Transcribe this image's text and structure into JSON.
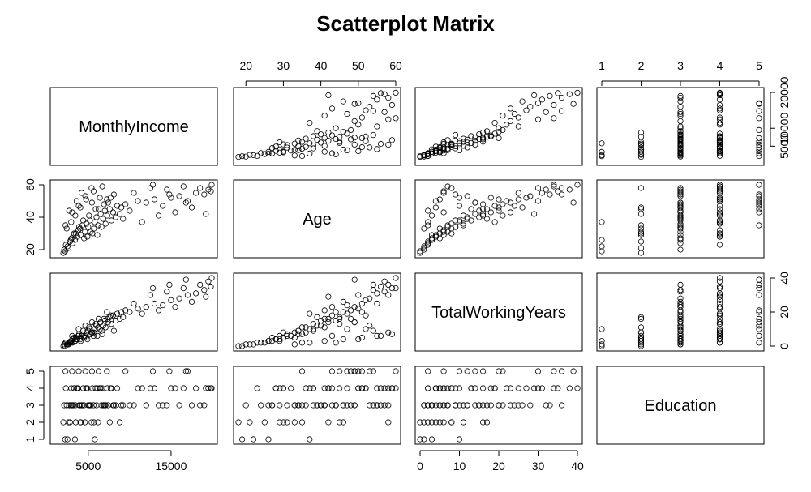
{
  "chart_data": {
    "type": "scatter",
    "subtype": "scatterplot-matrix",
    "title": "Scatterplot Matrix",
    "variables": [
      {
        "name": "MonthlyIncome",
        "range": [
          1009,
          19999
        ]
      },
      {
        "name": "Age",
        "range": [
          18,
          60
        ]
      },
      {
        "name": "TotalWorkingYears",
        "range": [
          0,
          40
        ]
      },
      {
        "name": "Education",
        "range": [
          1,
          5
        ]
      }
    ],
    "ticks": {
      "MonthlyIncome": {
        "bottom": [
          "5000",
          "15000"
        ],
        "right": [
          "5000",
          "10000",
          "20000"
        ]
      },
      "Age": {
        "top": [
          "20",
          "30",
          "40",
          "50",
          "60"
        ],
        "left": [
          "20",
          "40",
          "60"
        ]
      },
      "TotalWorkingYears": {
        "bottom": [
          "0",
          "10",
          "20",
          "30",
          "40"
        ],
        "right": [
          "0",
          "20",
          "40"
        ]
      },
      "Education": {
        "top": [
          "1",
          "2",
          "3",
          "4",
          "5"
        ],
        "left": [
          "1",
          "2",
          "3",
          "4",
          "5"
        ]
      }
    },
    "points": [
      [
        2500,
        22,
        1,
        1
      ],
      [
        2800,
        25,
        2,
        2
      ],
      [
        3000,
        27,
        3,
        3
      ],
      [
        3200,
        29,
        4,
        3
      ],
      [
        3500,
        30,
        5,
        2
      ],
      [
        3800,
        32,
        6,
        4
      ],
      [
        4000,
        33,
        5,
        3
      ],
      [
        4300,
        35,
        7,
        3
      ],
      [
        4600,
        31,
        6,
        2
      ],
      [
        4800,
        36,
        8,
        4
      ],
      [
        5000,
        34,
        9,
        3
      ],
      [
        5200,
        38,
        10,
        3
      ],
      [
        5500,
        30,
        8,
        4
      ],
      [
        5800,
        37,
        10,
        1
      ],
      [
        6000,
        40,
        12,
        3
      ],
      [
        6200,
        35,
        11,
        2
      ],
      [
        6500,
        42,
        14,
        4
      ],
      [
        6800,
        39,
        12,
        3
      ],
      [
        7000,
        44,
        15,
        3
      ],
      [
        7300,
        41,
        16,
        4
      ],
      [
        7600,
        45,
        17,
        2
      ],
      [
        8000,
        43,
        18,
        3
      ],
      [
        8500,
        47,
        19,
        4
      ],
      [
        9000,
        46,
        20,
        3
      ],
      [
        9500,
        48,
        21,
        5
      ],
      [
        10000,
        44,
        20,
        3
      ],
      [
        11000,
        50,
        22,
        4
      ],
      [
        12000,
        49,
        23,
        3
      ],
      [
        13000,
        51,
        25,
        4
      ],
      [
        14000,
        47,
        24,
        3
      ],
      [
        15000,
        52,
        27,
        4
      ],
      [
        16000,
        53,
        28,
        3
      ],
      [
        17000,
        50,
        30,
        5
      ],
      [
        18000,
        55,
        31,
        4
      ],
      [
        19000,
        54,
        33,
        3
      ],
      [
        19800,
        56,
        35,
        4
      ],
      [
        2200,
        19,
        0,
        1
      ],
      [
        2600,
        21,
        1,
        2
      ],
      [
        3100,
        24,
        2,
        3
      ],
      [
        3400,
        26,
        3,
        1
      ],
      [
        3700,
        28,
        4,
        4
      ],
      [
        4100,
        29,
        3,
        2
      ],
      [
        4500,
        27,
        5,
        3
      ],
      [
        4900,
        28,
        4,
        4
      ],
      [
        5300,
        31,
        7,
        3
      ],
      [
        5700,
        33,
        8,
        2
      ],
      [
        6100,
        29,
        6,
        4
      ],
      [
        6600,
        34,
        9,
        3
      ],
      [
        7100,
        36,
        11,
        3
      ],
      [
        7800,
        38,
        13,
        4
      ],
      [
        8300,
        40,
        15,
        3
      ],
      [
        8800,
        42,
        16,
        2
      ],
      [
        2100,
        20,
        1,
        3
      ],
      [
        2300,
        23,
        2,
        4
      ],
      [
        2900,
        26,
        3,
        3
      ],
      [
        3300,
        30,
        5,
        4
      ],
      [
        3900,
        34,
        7,
        3
      ],
      [
        4400,
        38,
        9,
        4
      ],
      [
        5100,
        41,
        11,
        3
      ],
      [
        5900,
        45,
        13,
        4
      ],
      [
        6900,
        48,
        16,
        3
      ],
      [
        7700,
        52,
        18,
        4
      ],
      [
        10500,
        55,
        25,
        3
      ],
      [
        12500,
        58,
        30,
        4
      ],
      [
        14500,
        57,
        32,
        3
      ],
      [
        16500,
        59,
        34,
        4
      ],
      [
        18500,
        58,
        36,
        3
      ],
      [
        19500,
        57,
        38,
        4
      ],
      [
        2700,
        44,
        2,
        3
      ],
      [
        3600,
        50,
        4,
        4
      ],
      [
        4200,
        55,
        6,
        3
      ],
      [
        5400,
        58,
        8,
        2
      ],
      [
        6400,
        52,
        10,
        4
      ],
      [
        7400,
        49,
        14,
        3
      ],
      [
        9200,
        39,
        17,
        3
      ],
      [
        11500,
        37,
        19,
        4
      ],
      [
        13500,
        41,
        21,
        3
      ],
      [
        15500,
        43,
        23,
        4
      ],
      [
        17500,
        46,
        26,
        3
      ],
      [
        19200,
        42,
        29,
        4
      ],
      [
        2400,
        33,
        1,
        3
      ],
      [
        2950,
        37,
        2,
        4
      ],
      [
        3450,
        41,
        3,
        3
      ],
      [
        4050,
        46,
        4,
        2
      ],
      [
        4750,
        51,
        5,
        4
      ],
      [
        5650,
        56,
        6,
        3
      ],
      [
        6700,
        59,
        7,
        4
      ],
      [
        8100,
        54,
        9,
        3
      ],
      [
        2000,
        18,
        0,
        2
      ],
      [
        2250,
        35,
        2,
        5
      ],
      [
        3050,
        43,
        6,
        5
      ],
      [
        3850,
        47,
        10,
        5
      ],
      [
        4650,
        53,
        12,
        5
      ],
      [
        5450,
        49,
        14,
        5
      ],
      [
        6250,
        45,
        16,
        5
      ],
      [
        7250,
        51,
        20,
        5
      ],
      [
        12800,
        60,
        34,
        5
      ],
      [
        14800,
        54,
        36,
        5
      ],
      [
        16800,
        49,
        39,
        5
      ],
      [
        19900,
        60,
        40,
        4
      ]
    ]
  }
}
